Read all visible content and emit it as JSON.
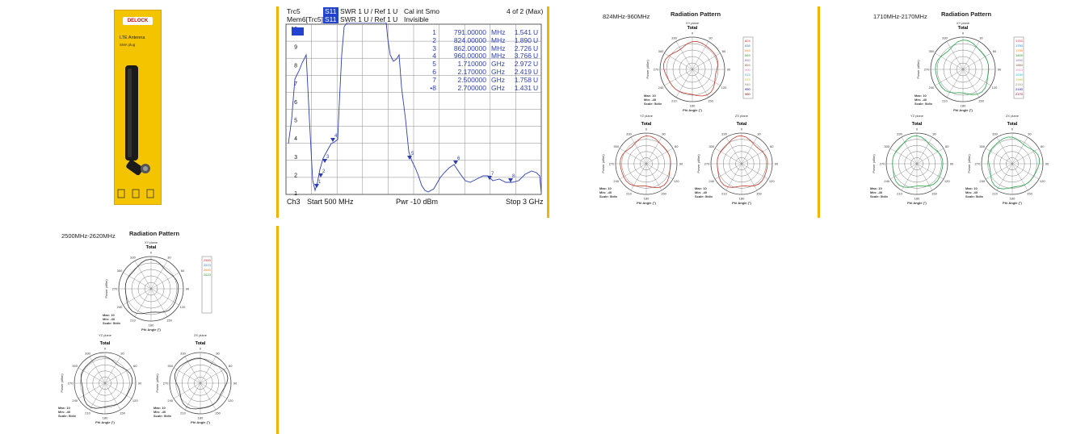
{
  "product": {
    "brand": "DELOCK",
    "name": "LTE Antenna",
    "connector": "SMA plug"
  },
  "vna": {
    "trace_label": "Trc5",
    "trace_param": "S11",
    "trace_format": "SWR  1 U /  Ref 1 U",
    "cal_text": "Cal int Smo",
    "marker_count": "4 of 2 (Max)",
    "mem_label": "Mem6[Trc5]",
    "mem_param": "S11",
    "mem_format": "SWR  1 U /  Ref 1 U",
    "mem_state": "Invisible",
    "y_ticks": [
      "10",
      "9",
      "8",
      "7",
      "6",
      "5",
      "4",
      "3",
      "2",
      "1"
    ],
    "markers": [
      {
        "n": "1",
        "freq": "791.00000",
        "unit": "MHz",
        "val": "1.541",
        "u": "U"
      },
      {
        "n": "2",
        "freq": "824.00000",
        "unit": "MHz",
        "val": "1.890",
        "u": "U"
      },
      {
        "n": "3",
        "freq": "862.00000",
        "unit": "MHz",
        "val": "2.726",
        "u": "U"
      },
      {
        "n": "4",
        "freq": "960.00000",
        "unit": "MHz",
        "val": "3.766",
        "u": "U"
      },
      {
        "n": "5",
        "freq": "1.710000",
        "unit": "GHz",
        "val": "2.972",
        "u": "U"
      },
      {
        "n": "6",
        "freq": "2.170000",
        "unit": "GHz",
        "val": "2.419",
        "u": "U"
      },
      {
        "n": "7",
        "freq": "2.500000",
        "unit": "GHz",
        "val": "1.758",
        "u": "U"
      },
      {
        "n": "•8",
        "freq": "2.700000",
        "unit": "GHz",
        "val": "1.431",
        "u": "U"
      }
    ],
    "channel": "Ch3",
    "start": "Start  500 MHz",
    "power": "Pwr  -10 dBm",
    "stop": "Stop  3 GHz"
  },
  "patterns": [
    {
      "band": "824MHz-960MHz",
      "title": "Radiation Pattern",
      "xy_plane": "XY plane",
      "yz_plane": "YZ plane",
      "zx_plane": "ZX plane",
      "total": "Total",
      "legend": [
        "824",
        "836",
        "848",
        "869",
        "880",
        "894",
        "900",
        "915",
        "925",
        "940",
        "950",
        "960"
      ],
      "color": "#c0392b"
    },
    {
      "band": "1710MHz-2170MHz",
      "title": "Radiation Pattern",
      "xy_plane": "XY plane",
      "yz_plane": "YZ plane",
      "zx_plane": "ZX plane",
      "total": "Total",
      "legend": [
        "1710",
        "1750",
        "1785",
        "1805",
        "1850",
        "1880",
        "1910",
        "1930",
        "1990",
        "2110",
        "2140",
        "2170"
      ],
      "color": "#27a34a"
    },
    {
      "band": "2500MHz-2620MHz",
      "title": "Radiation Pattern",
      "xy_plane": "XY plane",
      "yz_plane": "YZ plane",
      "zx_plane": "ZX plane",
      "total": "Total",
      "legend": [
        "2500",
        "2570",
        "2600",
        "2620"
      ],
      "color": "#333333"
    }
  ],
  "polar_labels": {
    "power_axis": "Power (dBm)",
    "phi_angle": "Phi Angle (°)",
    "max": "Max: 10",
    "min": "Min: -40",
    "scale": "Scale: 5/div"
  },
  "colors": {
    "separator": "#f2b400",
    "trace": "#2d3fae",
    "product_bg": "#f5c400"
  }
}
